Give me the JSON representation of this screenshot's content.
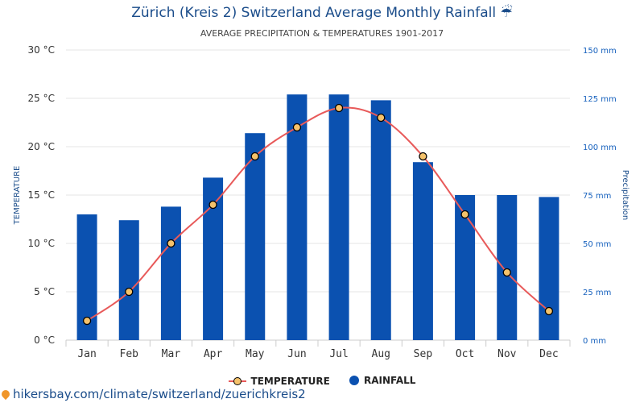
{
  "chart_data": {
    "type": "bar",
    "title": "Zürich (Kreis 2) Switzerland Average Monthly Rainfall",
    "title_icon": "☔",
    "subtitle": "AVERAGE PRECIPITATION & TEMPERATURES 1901-2017",
    "categories": [
      "Jan",
      "Feb",
      "Mar",
      "Apr",
      "May",
      "Jun",
      "Jul",
      "Aug",
      "Sep",
      "Oct",
      "Nov",
      "Dec"
    ],
    "series": [
      {
        "name": "RAINFALL",
        "type": "bar",
        "axis": "right",
        "unit": "mm",
        "values": [
          65,
          62,
          69,
          84,
          107,
          127,
          127,
          124,
          92,
          75,
          75,
          74
        ]
      },
      {
        "name": "TEMPERATURE",
        "type": "line",
        "axis": "left",
        "unit": "°C",
        "values": [
          2,
          5,
          10,
          14,
          19,
          22,
          24,
          23,
          19,
          13,
          7,
          3
        ]
      }
    ],
    "y_left": {
      "label": "TEMPERATURE",
      "range": [
        0,
        30
      ],
      "ticks": [
        "0 °C",
        "5 °C",
        "10 °C",
        "15 °C",
        "20 °C",
        "25 °C",
        "30 °C"
      ]
    },
    "y_right": {
      "label": "Precipitation",
      "range": [
        0,
        150
      ],
      "ticks": [
        "0 mm",
        "25 mm",
        "50 mm",
        "75 mm",
        "100 mm",
        "125 mm",
        "150 mm"
      ]
    },
    "colors": {
      "bar": "#0b51b0",
      "line": "#e85a5a",
      "marker": "#f5c26b",
      "grid": "#e6e6e6",
      "title": "#1a4c8a"
    },
    "legend": [
      "TEMPERATURE",
      "RAINFALL"
    ],
    "legend_position": "bottom"
  },
  "footer": {
    "url": "hikersbay.com/climate/switzerland/zuerichkreis2",
    "icon": "map-pin-icon"
  }
}
